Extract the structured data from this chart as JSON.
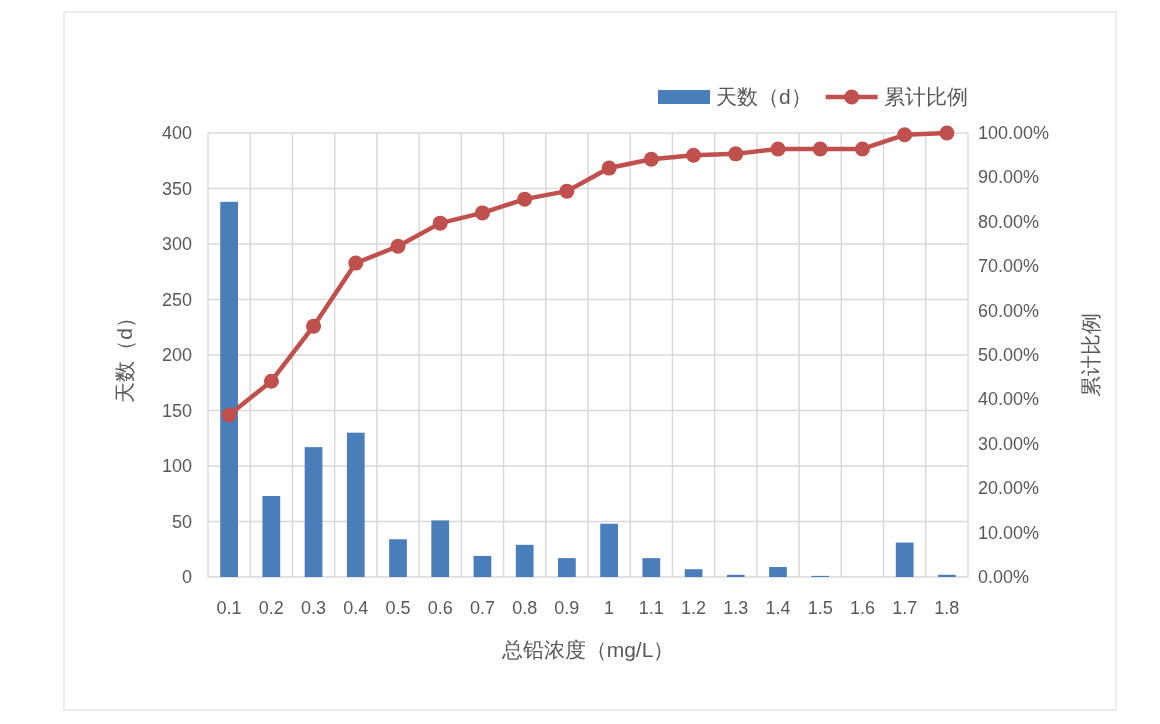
{
  "chart_data": {
    "type": "bar",
    "xlabel": "总铅浓度（mg/L）",
    "ylabel": "天数（d）",
    "y2label": "累计比例",
    "categories": [
      "0.1",
      "0.2",
      "0.3",
      "0.4",
      "0.5",
      "0.6",
      "0.7",
      "0.8",
      "0.9",
      "1",
      "1.1",
      "1.2",
      "1.3",
      "1.4",
      "1.5",
      "1.6",
      "1.7",
      "1.8"
    ],
    "series": [
      {
        "name": "天数（d）",
        "color": "#4a7ebb",
        "values": [
          338,
          73,
          117,
          130,
          34,
          51,
          19,
          29,
          17,
          48,
          17,
          7,
          2,
          9,
          1,
          0,
          31,
          2
        ]
      },
      {
        "name": "累计比例",
        "type": "line",
        "axis": "y2",
        "color": "#c0504d",
        "marker": "circle",
        "values": [
          36.5,
          44.1,
          56.5,
          70.7,
          74.5,
          79.7,
          82,
          85.1,
          86.9,
          92.1,
          94.1,
          95,
          95.3,
          96.4,
          96.4,
          96.4,
          99.6,
          100
        ]
      }
    ],
    "ylim": [
      0,
      400
    ],
    "yticks": [
      0,
      50,
      100,
      150,
      200,
      250,
      300,
      350,
      400
    ],
    "y2lim": [
      0,
      100
    ],
    "y2ticks": [
      {
        "value": 0,
        "label": "0.00%"
      },
      {
        "value": 10,
        "label": "10.00%"
      },
      {
        "value": 20,
        "label": "20.00%"
      },
      {
        "value": 30,
        "label": "30.00%"
      },
      {
        "value": 40,
        "label": "40.00%"
      },
      {
        "value": 50,
        "label": "50.00%"
      },
      {
        "value": 60,
        "label": "60.00%"
      },
      {
        "value": 70,
        "label": "70.00%"
      },
      {
        "value": 80,
        "label": "80.00%"
      },
      {
        "value": 90,
        "label": "90.00%"
      },
      {
        "value": 100,
        "label": "100.00%"
      }
    ],
    "grid": true,
    "legend": "top right"
  }
}
